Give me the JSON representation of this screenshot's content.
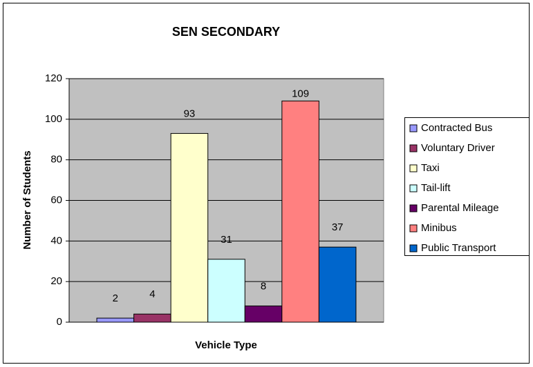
{
  "chart_data": {
    "type": "bar",
    "title": "SEN SECONDARY",
    "x_label": "Vehicle Type",
    "y_label": "Number of Students",
    "categories": [
      null
    ],
    "series": [
      {
        "name": "Contracted Bus",
        "color": "#9999ff",
        "values": [
          2
        ]
      },
      {
        "name": "Voluntary Driver",
        "color": "#993366",
        "values": [
          4
        ]
      },
      {
        "name": "Taxi",
        "color": "#ffffcc",
        "values": [
          93
        ]
      },
      {
        "name": "Tail-lift",
        "color": "#ccffff",
        "values": [
          31
        ]
      },
      {
        "name": "Parental Mileage",
        "color": "#660066",
        "values": [
          8
        ]
      },
      {
        "name": "Minibus",
        "color": "#ff8080",
        "values": [
          109
        ]
      },
      {
        "name": "Public Transport",
        "color": "#0066cc",
        "values": [
          37
        ]
      }
    ],
    "ylim": [
      0,
      120
    ],
    "yticks": [
      0,
      20,
      40,
      60,
      80,
      100,
      120
    ],
    "grid": true,
    "legend": "right"
  }
}
